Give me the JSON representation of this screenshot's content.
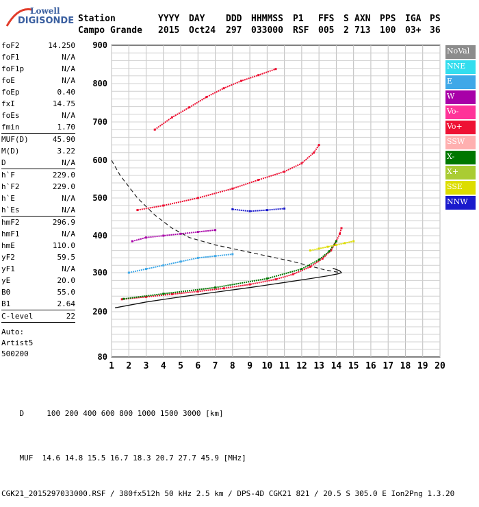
{
  "logo": {
    "line1": "Lowell",
    "line2": "DIGISONDE"
  },
  "header": {
    "labels": [
      "Station",
      "YYYY",
      "DAY",
      "DDD",
      "HHMMSS",
      "P1",
      "FFS",
      "S",
      "AXN",
      "PPS",
      "IGA",
      "PS"
    ],
    "values": [
      "Campo Grande",
      "2015",
      "Oct24",
      "297",
      "033000",
      "RSF",
      "005",
      "2",
      "713",
      "100",
      "03+",
      "36"
    ]
  },
  "params": {
    "group1": [
      {
        "label": "foF2",
        "value": "14.250"
      },
      {
        "label": "foF1",
        "value": "N/A"
      },
      {
        "label": "foF1p",
        "value": "N/A"
      },
      {
        "label": "foE",
        "value": "N/A"
      },
      {
        "label": "foEp",
        "value": "0.40"
      },
      {
        "label": "fxI",
        "value": "14.75"
      },
      {
        "label": "foEs",
        "value": "N/A"
      },
      {
        "label": "fmin",
        "value": "1.70"
      }
    ],
    "group2": [
      {
        "label": "MUF(D)",
        "value": "45.90"
      },
      {
        "label": "M(D)",
        "value": "3.22"
      },
      {
        "label": "D",
        "value": "N/A"
      }
    ],
    "group3": [
      {
        "label": "h`F",
        "value": "229.0"
      },
      {
        "label": "h`F2",
        "value": "229.0"
      },
      {
        "label": "h`E",
        "value": "N/A"
      },
      {
        "label": "h`Es",
        "value": "N/A"
      }
    ],
    "group4": [
      {
        "label": "hmF2",
        "value": "296.9"
      },
      {
        "label": "hmF1",
        "value": "N/A"
      },
      {
        "label": "hmE",
        "value": "110.0"
      },
      {
        "label": "yF2",
        "value": "59.5"
      },
      {
        "label": "yF1",
        "value": "N/A"
      },
      {
        "label": "yE",
        "value": "20.0"
      },
      {
        "label": "B0",
        "value": "55.0"
      },
      {
        "label": "B1",
        "value": "2.64"
      }
    ],
    "clevel": {
      "label": "C-level",
      "value": "22"
    },
    "auto": [
      "Auto:",
      "Artist5",
      "500200"
    ]
  },
  "legend": [
    {
      "label": "NoVal",
      "color": "#8c8c8c"
    },
    {
      "label": "NNE",
      "color": "#33ddee"
    },
    {
      "label": "E",
      "color": "#3fa8e8"
    },
    {
      "label": "W",
      "color": "#a800a8"
    },
    {
      "label": "Vo-",
      "color": "#ff3399"
    },
    {
      "label": "Vo+",
      "color": "#ee1133"
    },
    {
      "label": "SSW",
      "color": "#ffb0b0"
    },
    {
      "label": "X-",
      "color": "#007700"
    },
    {
      "label": "X+",
      "color": "#aacc33"
    },
    {
      "label": "SSE",
      "color": "#dddd00"
    },
    {
      "label": "NNW",
      "color": "#1a1acc"
    }
  ],
  "bottom": {
    "row_d_label": "D",
    "row_d_values": [
      "100",
      "200",
      "400",
      "600",
      "800",
      "1000",
      "1500",
      "3000"
    ],
    "row_d_unit": "[km]",
    "row_muf_label": "MUF",
    "row_muf_values": [
      "14.6",
      "14.8",
      "15.5",
      "16.7",
      "18.3",
      "20.7",
      "27.7",
      "45.9"
    ],
    "row_muf_unit": "[MHz]",
    "footer": "CGK21_2015297033000.RSF / 380fx512h 50 kHz 2.5 km / DPS-4D CGK21 821 / 20.5 S 305.0 E Ion2Png 1.3.20"
  },
  "chart_data": {
    "type": "scatter",
    "xlim": [
      1,
      20
    ],
    "ylim": [
      80,
      900
    ],
    "x_ticks": [
      1,
      2,
      3,
      4,
      5,
      6,
      7,
      8,
      9,
      10,
      11,
      12,
      13,
      14,
      15,
      16,
      17,
      18,
      19,
      20
    ],
    "y_ticks": [
      80,
      200,
      300,
      400,
      500,
      600,
      700,
      800,
      900
    ],
    "grid": true,
    "legend_position": "right",
    "series": [
      {
        "name": "Vo+",
        "color": "#ee1133",
        "x": [
          1.6,
          3,
          4.5,
          6,
          7.5,
          9,
          10.5,
          11.5,
          12.5,
          13.2,
          13.7,
          14.0,
          14.2,
          14.3
        ],
        "y": [
          232,
          238,
          245,
          252,
          260,
          270,
          283,
          296,
          316,
          338,
          360,
          385,
          405,
          420
        ]
      },
      {
        "name": "Vo+",
        "color": "#ee1133",
        "x": [
          2.5,
          4,
          6,
          8,
          9.5,
          11,
          12,
          12.7,
          13.0
        ],
        "y": [
          468,
          480,
          500,
          525,
          548,
          570,
          592,
          620,
          640
        ]
      },
      {
        "name": "Vo+",
        "color": "#ee1133",
        "x": [
          3.5,
          4.5,
          5.5,
          6.5,
          7.5,
          8.5,
          9.5,
          10.5
        ],
        "y": [
          680,
          712,
          738,
          765,
          788,
          807,
          822,
          838
        ]
      },
      {
        "name": "X-",
        "color": "#007700",
        "x": [
          1.7,
          4,
          7,
          10,
          12,
          13,
          13.6,
          14.0
        ],
        "y": [
          233,
          246,
          262,
          285,
          310,
          335,
          358,
          385
        ]
      },
      {
        "name": "W",
        "color": "#a800a8",
        "x": [
          2.2,
          3,
          4,
          5,
          6,
          7
        ],
        "y": [
          385,
          395,
          400,
          405,
          410,
          415
        ]
      },
      {
        "name": "NNW",
        "color": "#1a1acc",
        "x": [
          8,
          9,
          10,
          11
        ],
        "y": [
          470,
          465,
          468,
          472
        ]
      },
      {
        "name": "E",
        "color": "#3fa8e8",
        "x": [
          2,
          3,
          4,
          5,
          6,
          7,
          8
        ],
        "y": [
          300,
          310,
          320,
          330,
          340,
          345,
          350
        ]
      },
      {
        "name": "SSE",
        "color": "#dddd00",
        "x": [
          12.5,
          13,
          13.5,
          14,
          14.5,
          15
        ],
        "y": [
          360,
          365,
          370,
          375,
          380,
          385
        ]
      }
    ],
    "profile_solid": {
      "x": [
        1.2,
        3,
        5,
        7,
        9,
        11,
        12.5,
        13.5,
        14.1,
        14.3,
        14.2,
        13.8
      ],
      "y": [
        210,
        225,
        238,
        250,
        262,
        275,
        285,
        292,
        297,
        300,
        305,
        312
      ]
    },
    "profile_dashed": {
      "x": [
        1.0,
        1.5,
        2.5,
        3.5,
        4.5,
        5.5,
        7,
        8.5,
        10,
        11.5,
        12.5,
        13.3,
        14.0,
        14.3
      ],
      "y": [
        600,
        560,
        500,
        455,
        420,
        395,
        375,
        360,
        345,
        330,
        318,
        308,
        302,
        300
      ]
    }
  }
}
